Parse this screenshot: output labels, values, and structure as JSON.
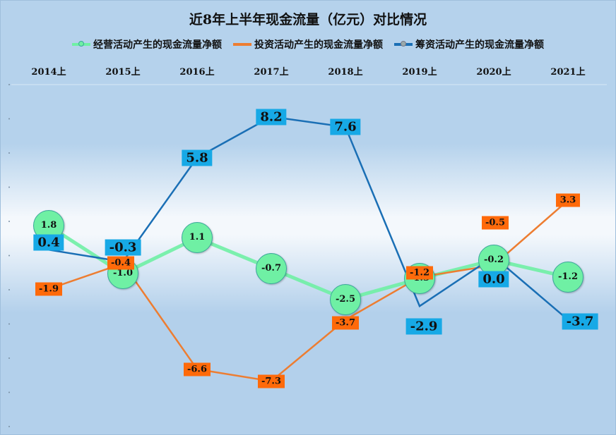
{
  "chart_data": {
    "type": "line",
    "title": "近8年上半年现金流量（亿元）对比情况",
    "categories": [
      "2014上",
      "2015上",
      "2016上",
      "2017上",
      "2018上",
      "2019上",
      "2020上",
      "2021上"
    ],
    "series": [
      {
        "name": "经营活动产生的现金流量净额",
        "color": "#6ff0a4",
        "values": [
          1.8,
          -1.0,
          1.1,
          -0.7,
          -2.5,
          -1.3,
          -0.2,
          -1.2
        ]
      },
      {
        "name": "投资活动产生的现金流量净额",
        "color": "#ed7d31",
        "values": [
          -1.9,
          -0.4,
          -6.6,
          -7.3,
          -3.7,
          -1.2,
          -0.5,
          3.3
        ]
      },
      {
        "name": "筹资活动产生的现金流量净额",
        "color": "#1a6fb5",
        "values": [
          0.4,
          -0.3,
          5.8,
          8.2,
          7.6,
          -2.9,
          0.0,
          -3.7
        ]
      }
    ],
    "xlabel": "",
    "ylabel": "",
    "ylim": [
      -10,
      10
    ],
    "legend_position": "top",
    "grid": false
  },
  "labels": {
    "op": [
      "1.8",
      "-1.0",
      "1.1",
      "-0.7",
      "-2.5",
      "-1.3",
      "-0.2",
      "-1.2"
    ],
    "inv": [
      "-1.9",
      "-0.4",
      "-6.6",
      "-7.3",
      "-3.7",
      "-1.2",
      "-0.5",
      "3.3"
    ],
    "fin": [
      "0.4",
      "-0.3",
      "5.8",
      "8.2",
      "7.6",
      "-2.9",
      "0.0",
      "-3.7"
    ]
  }
}
